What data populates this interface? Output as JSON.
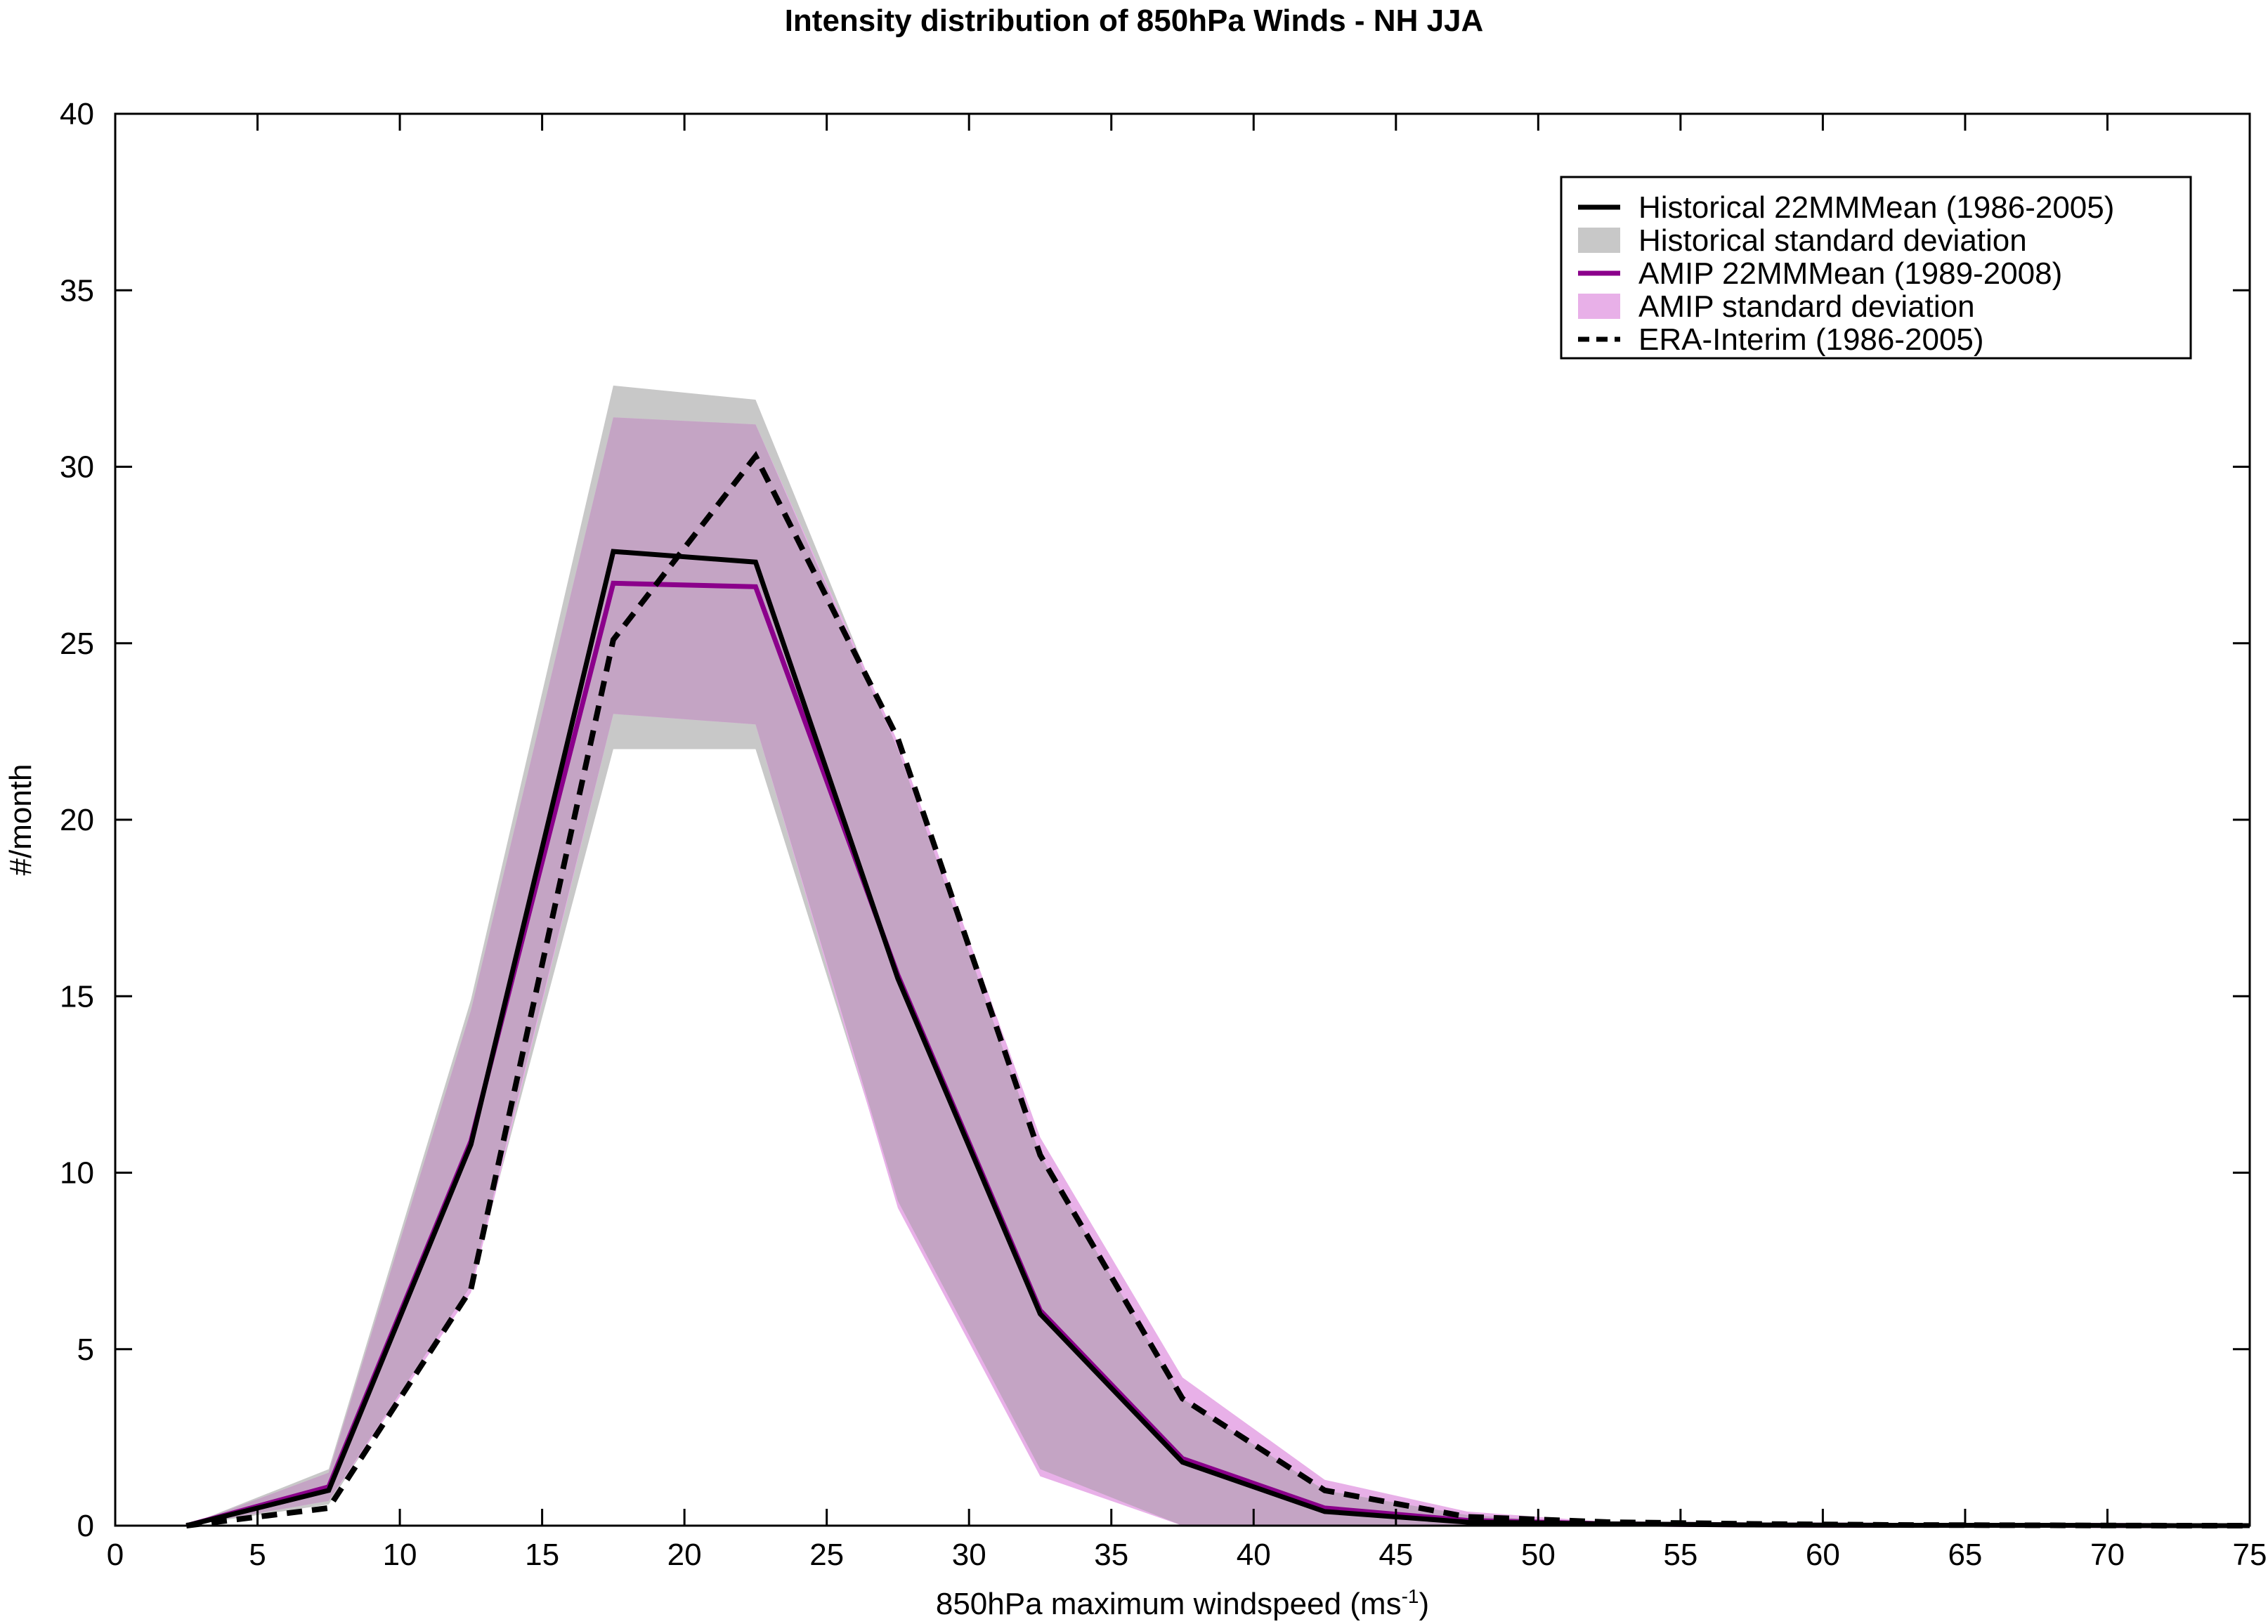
{
  "chart_data": {
    "type": "line",
    "title": "Intensity distribution of 850hPa Winds - NH JJA",
    "xlabel": "850hPa maximum windspeed (ms",
    "xlabel_superscript": "-1",
    "xlabel_suffix": ")",
    "ylabel": "#/month",
    "xlim": [
      0,
      75
    ],
    "ylim": [
      0,
      40
    ],
    "xticks": [
      0,
      5,
      10,
      15,
      20,
      25,
      30,
      35,
      40,
      45,
      50,
      55,
      60,
      65,
      70,
      75
    ],
    "yticks": [
      0,
      5,
      10,
      15,
      20,
      25,
      30,
      35,
      40
    ],
    "grid": false,
    "legend_position": "top-right",
    "x": [
      2.5,
      7.5,
      12.5,
      17.5,
      22.5,
      27.5,
      32.5,
      37.5,
      42.5,
      47.5,
      52.5,
      57.5,
      62.5,
      67.5,
      72.5,
      75
    ],
    "bands": [
      {
        "name": "Historical standard deviation",
        "color": "#c8c8c8",
        "lower": [
          0,
          0.6,
          6.8,
          22.0,
          22.0,
          9.2,
          1.6,
          0.0,
          0.0,
          0.0,
          0.0,
          0.0,
          0.0,
          0.0,
          0.0,
          0.0
        ],
        "upper": [
          0,
          1.6,
          14.9,
          32.3,
          31.9,
          22.0,
          10.5,
          3.6,
          1.0,
          0.3,
          0.05,
          0.02,
          0.01,
          0.0,
          0.0,
          0.0
        ]
      },
      {
        "name": "AMIP standard deviation",
        "color": "#e8b0e8",
        "lower": [
          0,
          0.7,
          6.6,
          23.0,
          22.7,
          9.0,
          1.4,
          0.0,
          0.0,
          0.0,
          0.0,
          0.0,
          0.0,
          0.0,
          0.0,
          0.0
        ],
        "upper": [
          0,
          1.5,
          14.6,
          31.4,
          31.2,
          22.2,
          11.0,
          4.2,
          1.3,
          0.4,
          0.1,
          0.03,
          0.01,
          0.0,
          0.0,
          0.0
        ]
      }
    ],
    "series": [
      {
        "name": "Historical 22MMMean (1986-2005)",
        "color": "#000000",
        "style": "solid",
        "values": [
          0.0,
          1.0,
          10.8,
          27.6,
          27.3,
          15.5,
          6.0,
          1.8,
          0.4,
          0.1,
          0.05,
          0.02,
          0.01,
          0.01,
          0.0,
          0.0
        ]
      },
      {
        "name": "AMIP 22MMMean (1989-2008)",
        "color": "#8b008b",
        "style": "solid",
        "values": [
          0.0,
          1.1,
          10.9,
          26.7,
          26.6,
          15.6,
          6.1,
          1.9,
          0.5,
          0.15,
          0.05,
          0.02,
          0.01,
          0.01,
          0.0,
          0.0
        ]
      },
      {
        "name": "ERA-Interim (1986-2005)",
        "color": "#000000",
        "style": "dashed",
        "values": [
          0.0,
          0.5,
          6.7,
          25.1,
          30.3,
          22.3,
          10.5,
          3.6,
          1.0,
          0.25,
          0.1,
          0.05,
          0.02,
          0.01,
          0.0,
          0.0
        ]
      }
    ],
    "legend": [
      {
        "label": "Historical 22MMMean (1986-2005)",
        "kind": "line",
        "color": "#000000",
        "style": "solid"
      },
      {
        "label": "Historical standard deviation",
        "kind": "patch",
        "color": "#c8c8c8"
      },
      {
        "label": "AMIP 22MMMean (1989-2008)",
        "kind": "line",
        "color": "#8b008b",
        "style": "solid"
      },
      {
        "label": "AMIP standard deviation",
        "kind": "patch",
        "color": "#e8b0e8"
      },
      {
        "label": "ERA-Interim (1986-2005)",
        "kind": "line",
        "color": "#000000",
        "style": "dashed"
      }
    ]
  }
}
